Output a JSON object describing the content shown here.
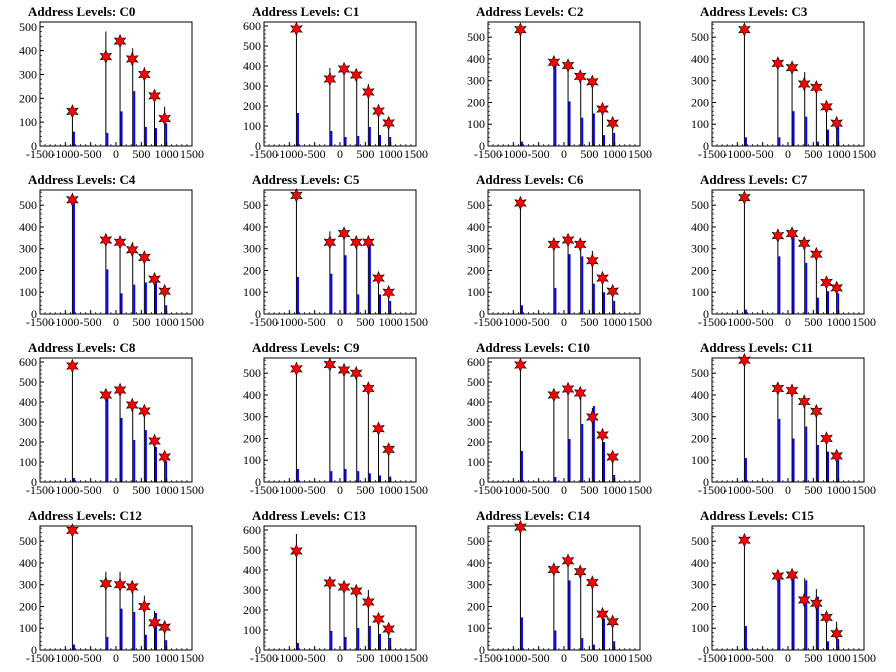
{
  "figure": {
    "layout": "4x4 grid of histograms"
  },
  "colors": {
    "histogram_tall": "#000000",
    "histogram_short": "#0000ff",
    "marker": "#ff0000",
    "marker_edge": "#000000",
    "frame": "#000000"
  },
  "chart_data": [
    {
      "type": "bar",
      "title": "Address Levels: C0",
      "xlim": [
        -1500,
        1500
      ],
      "ylim": [
        0,
        520
      ],
      "xticks": [
        "-1500",
        "-1000",
        "-500",
        "0",
        "500",
        "1000",
        "1500"
      ],
      "yticks": [
        "0",
        "100",
        "200",
        "300",
        "400",
        "500"
      ],
      "x": [
        -860,
        -200,
        80,
        330,
        560,
        760,
        960
      ],
      "values": [
        165,
        480,
        455,
        410,
        330,
        210,
        165
      ],
      "short": [
        60,
        55,
        145,
        230,
        80,
        75,
        95
      ],
      "markers": {
        "x": [
          -860,
          -200,
          80,
          320,
          560,
          760,
          960
        ],
        "y": [
          145,
          375,
          440,
          365,
          300,
          210,
          115
        ]
      }
    },
    {
      "type": "bar",
      "title": "Address Levels: C1",
      "xlim": [
        -1500,
        1500
      ],
      "ylim": [
        0,
        620
      ],
      "xticks": [
        "-1500",
        "-1000",
        "-500",
        "0",
        "500",
        "1000",
        "1500"
      ],
      "yticks": [
        "0",
        "100",
        "200",
        "300",
        "400",
        "500",
        "600"
      ],
      "x": [
        -860,
        -200,
        80,
        330,
        560,
        760,
        960
      ],
      "values": [
        570,
        390,
        380,
        330,
        310,
        190,
        125
      ],
      "short": [
        165,
        75,
        45,
        50,
        95,
        55,
        45
      ],
      "markers": {
        "x": [
          -860,
          -200,
          80,
          320,
          560,
          760,
          960
        ],
        "y": [
          585,
          335,
          385,
          355,
          270,
          175,
          115
        ]
      }
    },
    {
      "type": "bar",
      "title": "Address Levels: C2",
      "xlim": [
        -1500,
        1500
      ],
      "ylim": [
        0,
        570
      ],
      "xticks": [
        "-1500",
        "-1000",
        "-500",
        "0",
        "500",
        "1000",
        "1500"
      ],
      "yticks": [
        "0",
        "100",
        "200",
        "300",
        "400",
        "500"
      ],
      "x": [
        -860,
        -200,
        80,
        330,
        560,
        760,
        960
      ],
      "values": [
        550,
        400,
        360,
        330,
        320,
        165,
        120
      ],
      "short": [
        20,
        385,
        205,
        130,
        150,
        50,
        60
      ],
      "markers": {
        "x": [
          -860,
          -200,
          80,
          320,
          560,
          760,
          960
        ],
        "y": [
          535,
          385,
          370,
          320,
          295,
          170,
          105
        ]
      }
    },
    {
      "type": "bar",
      "title": "Address Levels: C3",
      "xlim": [
        -1500,
        1500
      ],
      "ylim": [
        0,
        570
      ],
      "xticks": [
        "-1500",
        "-1000",
        "-500",
        "0",
        "500",
        "1000",
        "1500"
      ],
      "yticks": [
        "0",
        "100",
        "200",
        "300",
        "400",
        "500"
      ],
      "x": [
        -860,
        -200,
        80,
        330,
        560,
        760,
        960
      ],
      "values": [
        550,
        390,
        370,
        340,
        290,
        200,
        120
      ],
      "short": [
        40,
        40,
        160,
        135,
        20,
        75,
        90
      ],
      "markers": {
        "x": [
          -860,
          -200,
          80,
          320,
          560,
          760,
          960
        ],
        "y": [
          535,
          380,
          360,
          285,
          270,
          180,
          105
        ]
      }
    },
    {
      "type": "bar",
      "title": "Address Levels: C4",
      "xlim": [
        -1500,
        1500
      ],
      "ylim": [
        0,
        570
      ],
      "xticks": [
        "-1500",
        "-1000",
        "-500",
        "0",
        "500",
        "1000",
        "1500"
      ],
      "yticks": [
        "0",
        "100",
        "200",
        "300",
        "400",
        "500"
      ],
      "x": [
        -860,
        -200,
        80,
        330,
        560,
        760,
        960
      ],
      "values": [
        540,
        350,
        340,
        330,
        270,
        170,
        110
      ],
      "short": [
        520,
        205,
        95,
        135,
        145,
        160,
        40
      ],
      "markers": {
        "x": [
          -860,
          -200,
          80,
          320,
          560,
          760,
          960
        ],
        "y": [
          525,
          340,
          330,
          295,
          260,
          160,
          105
        ]
      }
    },
    {
      "type": "bar",
      "title": "Address Levels: C5",
      "xlim": [
        -1500,
        1500
      ],
      "ylim": [
        0,
        570
      ],
      "xticks": [
        "-1500",
        "-1000",
        "-500",
        "0",
        "500",
        "1000",
        "1500"
      ],
      "yticks": [
        "0",
        "100",
        "200",
        "300",
        "400",
        "500"
      ],
      "x": [
        -860,
        -200,
        80,
        330,
        560,
        760,
        960
      ],
      "values": [
        550,
        380,
        370,
        350,
        340,
        170,
        110
      ],
      "short": [
        170,
        185,
        270,
        90,
        330,
        90,
        60
      ],
      "markers": {
        "x": [
          -860,
          -200,
          80,
          320,
          560,
          760,
          960
        ],
        "y": [
          545,
          330,
          370,
          330,
          330,
          165,
          100
        ]
      }
    },
    {
      "type": "bar",
      "title": "Address Levels: C6",
      "xlim": [
        -1500,
        1500
      ],
      "ylim": [
        0,
        570
      ],
      "xticks": [
        "-1500",
        "-1000",
        "-500",
        "0",
        "500",
        "1000",
        "1500"
      ],
      "yticks": [
        "0",
        "100",
        "200",
        "300",
        "400",
        "500"
      ],
      "x": [
        -860,
        -200,
        80,
        330,
        560,
        760,
        960
      ],
      "values": [
        530,
        350,
        350,
        330,
        290,
        180,
        120
      ],
      "short": [
        40,
        120,
        275,
        265,
        140,
        100,
        60
      ],
      "markers": {
        "x": [
          -860,
          -200,
          80,
          320,
          560,
          760,
          960
        ],
        "y": [
          510,
          320,
          340,
          320,
          245,
          165,
          105
        ]
      }
    },
    {
      "type": "bar",
      "title": "Address Levels: C7",
      "xlim": [
        -1500,
        1500
      ],
      "ylim": [
        0,
        570
      ],
      "xticks": [
        "-1500",
        "-1000",
        "-500",
        "0",
        "500",
        "1000",
        "1500"
      ],
      "yticks": [
        "0",
        "100",
        "200",
        "300",
        "400",
        "500"
      ],
      "x": [
        -860,
        -200,
        80,
        330,
        560,
        760,
        960
      ],
      "values": [
        550,
        390,
        370,
        330,
        290,
        170,
        120
      ],
      "short": [
        20,
        265,
        355,
        235,
        75,
        105,
        95
      ],
      "markers": {
        "x": [
          -860,
          -200,
          80,
          320,
          560,
          760,
          960
        ],
        "y": [
          535,
          360,
          370,
          325,
          275,
          145,
          120
        ]
      }
    },
    {
      "type": "bar",
      "title": "Address Levels: C8",
      "xlim": [
        -1500,
        1500
      ],
      "ylim": [
        0,
        620
      ],
      "xticks": [
        "-1500",
        "-1000",
        "-500",
        "0",
        "500",
        "1000",
        "1500"
      ],
      "yticks": [
        "0",
        "100",
        "200",
        "300",
        "400",
        "500",
        "600"
      ],
      "x": [
        -860,
        -200,
        80,
        330,
        560,
        760,
        960
      ],
      "values": [
        590,
        450,
        470,
        400,
        380,
        220,
        140
      ],
      "short": [
        20,
        430,
        320,
        210,
        260,
        175,
        105
      ],
      "markers": {
        "x": [
          -860,
          -200,
          80,
          320,
          560,
          760,
          960
        ],
        "y": [
          580,
          435,
          460,
          385,
          355,
          205,
          125
        ]
      }
    },
    {
      "type": "bar",
      "title": "Address Levels: C9",
      "xlim": [
        -1500,
        1500
      ],
      "ylim": [
        0,
        570
      ],
      "xticks": [
        "-1500",
        "-1000",
        "-500",
        "0",
        "500",
        "1000",
        "1500"
      ],
      "yticks": [
        "0",
        "100",
        "200",
        "300",
        "400",
        "500"
      ],
      "x": [
        -860,
        -200,
        80,
        330,
        560,
        760,
        960
      ],
      "values": [
        540,
        560,
        520,
        500,
        440,
        270,
        170
      ],
      "short": [
        60,
        50,
        60,
        50,
        40,
        30,
        25
      ],
      "markers": {
        "x": [
          -860,
          -200,
          80,
          320,
          560,
          760,
          960
        ],
        "y": [
          520,
          540,
          515,
          500,
          430,
          245,
          150
        ]
      }
    },
    {
      "type": "bar",
      "title": "Address Levels: C10",
      "xlim": [
        -1500,
        1500
      ],
      "ylim": [
        0,
        620
      ],
      "xticks": [
        "-1500",
        "-1000",
        "-500",
        "0",
        "500",
        "1000",
        "1500"
      ],
      "yticks": [
        "0",
        "100",
        "200",
        "300",
        "400",
        "500",
        "600"
      ],
      "x": [
        -860,
        -200,
        80,
        330,
        560,
        760,
        960
      ],
      "values": [
        600,
        440,
        480,
        430,
        370,
        240,
        130
      ],
      "short": [
        155,
        25,
        215,
        290,
        380,
        200,
        35
      ],
      "markers": {
        "x": [
          -860,
          -200,
          80,
          320,
          560,
          760,
          960
        ],
        "y": [
          585,
          435,
          465,
          445,
          325,
          235,
          125
        ]
      }
    },
    {
      "type": "bar",
      "title": "Address Levels: C11",
      "xlim": [
        -1500,
        1500
      ],
      "ylim": [
        0,
        570
      ],
      "xticks": [
        "-1500",
        "-1000",
        "-500",
        "0",
        "500",
        "1000",
        "1500"
      ],
      "yticks": [
        "0",
        "100",
        "200",
        "300",
        "400",
        "500"
      ],
      "x": [
        -860,
        -200,
        80,
        330,
        560,
        760,
        960
      ],
      "values": [
        560,
        440,
        420,
        380,
        340,
        210,
        130
      ],
      "short": [
        110,
        290,
        200,
        255,
        170,
        140,
        105
      ],
      "markers": {
        "x": [
          -860,
          -200,
          80,
          320,
          560,
          760,
          960
        ],
        "y": [
          560,
          430,
          420,
          370,
          325,
          200,
          120
        ]
      }
    },
    {
      "type": "bar",
      "title": "Address Levels: C12",
      "xlim": [
        -1500,
        1500
      ],
      "ylim": [
        0,
        570
      ],
      "xticks": [
        "-1500",
        "-1000",
        "-500",
        "0",
        "500",
        "1000",
        "1500"
      ],
      "yticks": [
        "0",
        "100",
        "200",
        "300",
        "400",
        "500"
      ],
      "x": [
        -860,
        -200,
        80,
        330,
        560,
        760,
        960
      ],
      "values": [
        560,
        360,
        360,
        310,
        250,
        180,
        110
      ],
      "short": [
        25,
        60,
        190,
        175,
        70,
        170,
        45
      ],
      "markers": {
        "x": [
          -860,
          -200,
          80,
          320,
          560,
          760,
          960
        ],
        "y": [
          550,
          305,
          300,
          290,
          200,
          125,
          105
        ]
      }
    },
    {
      "type": "bar",
      "title": "Address Levels: C13",
      "xlim": [
        -1500,
        1500
      ],
      "ylim": [
        0,
        620
      ],
      "xticks": [
        "-1500",
        "-1000",
        "-500",
        "0",
        "500",
        "1000",
        "1500"
      ],
      "yticks": [
        "0",
        "100",
        "200",
        "300",
        "400",
        "500",
        "600"
      ],
      "x": [
        -860,
        -200,
        80,
        330,
        560,
        760,
        960
      ],
      "values": [
        580,
        350,
        330,
        310,
        300,
        180,
        130
      ],
      "short": [
        35,
        95,
        65,
        110,
        120,
        80,
        60
      ],
      "markers": {
        "x": [
          -860,
          -200,
          80,
          320,
          560,
          760,
          960
        ],
        "y": [
          495,
          335,
          315,
          295,
          240,
          155,
          105
        ]
      }
    },
    {
      "type": "bar",
      "title": "Address Levels: C14",
      "xlim": [
        -1500,
        1500
      ],
      "ylim": [
        0,
        570
      ],
      "xticks": [
        "-1500",
        "-1000",
        "-500",
        "0",
        "500",
        "1000",
        "1500"
      ],
      "yticks": [
        "0",
        "100",
        "200",
        "300",
        "400",
        "500"
      ],
      "x": [
        -860,
        -200,
        80,
        330,
        560,
        760,
        960
      ],
      "values": [
        570,
        380,
        420,
        370,
        330,
        190,
        150
      ],
      "short": [
        150,
        90,
        320,
        55,
        25,
        145,
        40
      ],
      "markers": {
        "x": [
          -860,
          -200,
          80,
          320,
          560,
          760,
          960
        ],
        "y": [
          565,
          370,
          410,
          360,
          310,
          165,
          130
        ]
      }
    },
    {
      "type": "bar",
      "title": "Address Levels: C15",
      "xlim": [
        -1500,
        1500
      ],
      "ylim": [
        0,
        570
      ],
      "xticks": [
        "-1500",
        "-1000",
        "-500",
        "0",
        "500",
        "1000",
        "1500"
      ],
      "yticks": [
        "0",
        "100",
        "200",
        "300",
        "400",
        "500"
      ],
      "x": [
        -860,
        -200,
        80,
        330,
        560,
        760,
        960
      ],
      "values": [
        520,
        360,
        360,
        330,
        280,
        160,
        130
      ],
      "short": [
        110,
        330,
        340,
        320,
        245,
        40,
        50
      ],
      "markers": {
        "x": [
          -860,
          -200,
          80,
          320,
          560,
          760,
          960
        ],
        "y": [
          505,
          340,
          345,
          230,
          215,
          150,
          75
        ]
      }
    }
  ]
}
